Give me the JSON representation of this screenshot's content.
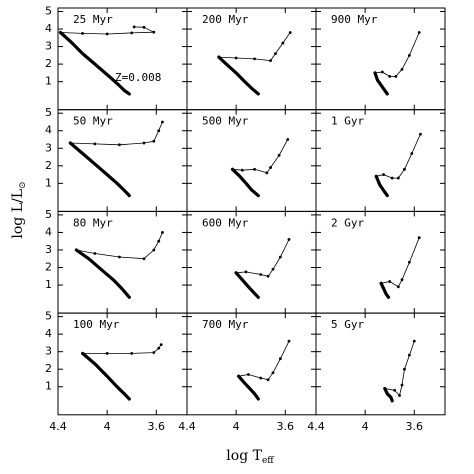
{
  "chart_data": [
    {
      "type": "line",
      "title": "25 Myr",
      "annotation": "Z=0.008",
      "color": "#000000",
      "xlim": [
        4.4,
        3.35
      ],
      "ylim": [
        -0.6,
        5.2
      ],
      "xticks": [
        4.4,
        4,
        3.6
      ],
      "yticks": [
        1,
        2,
        3,
        4,
        5
      ],
      "series": [
        {
          "x": [
            4.38,
            4.3,
            4.2,
            4.1,
            4.0,
            3.92,
            3.86,
            3.82
          ],
          "values": [
            3.8,
            3.3,
            2.6,
            2.0,
            1.4,
            0.9,
            0.5,
            0.3
          ]
        },
        {
          "x": [
            4.38,
            4.2,
            4.0,
            3.8,
            3.62,
            3.7,
            3.78
          ],
          "values": [
            3.8,
            3.75,
            3.72,
            3.78,
            3.82,
            4.1,
            4.12
          ]
        }
      ]
    },
    {
      "type": "line",
      "title": "50 Myr",
      "color": "#000000",
      "xlim": [
        4.4,
        3.35
      ],
      "ylim": [
        -0.6,
        5.2
      ],
      "xticks": [
        4.4,
        4,
        3.6
      ],
      "yticks": [
        1,
        2,
        3,
        4,
        5
      ],
      "series": [
        {
          "x": [
            4.3,
            4.2,
            4.1,
            4.0,
            3.92,
            3.86,
            3.82
          ],
          "values": [
            3.3,
            2.7,
            2.1,
            1.5,
            1.0,
            0.6,
            0.3
          ]
        },
        {
          "x": [
            4.3,
            4.1,
            3.9,
            3.7,
            3.62,
            3.58,
            3.55
          ],
          "values": [
            3.3,
            3.25,
            3.2,
            3.3,
            3.4,
            4.0,
            4.5
          ]
        }
      ]
    },
    {
      "type": "line",
      "title": "80 Myr",
      "color": "#000000",
      "xlim": [
        4.4,
        3.35
      ],
      "ylim": [
        -0.6,
        5.2
      ],
      "xticks": [
        4.4,
        4,
        3.6
      ],
      "yticks": [
        1,
        2,
        3,
        4,
        5
      ],
      "series": [
        {
          "x": [
            4.25,
            4.15,
            4.05,
            3.95,
            3.88,
            3.82
          ],
          "values": [
            3.0,
            2.5,
            1.9,
            1.3,
            0.8,
            0.3
          ]
        },
        {
          "x": [
            4.25,
            4.1,
            3.9,
            3.7,
            3.62,
            3.58,
            3.55
          ],
          "values": [
            3.0,
            2.8,
            2.6,
            2.5,
            3.0,
            3.5,
            4.0
          ]
        }
      ]
    },
    {
      "type": "line",
      "title": "100 Myr",
      "color": "#000000",
      "xlim": [
        4.4,
        3.35
      ],
      "ylim": [
        -0.6,
        5.2
      ],
      "xticks": [
        4.4,
        4,
        3.6
      ],
      "yticks": [
        1,
        2,
        3,
        4,
        5
      ],
      "series": [
        {
          "x": [
            4.2,
            4.1,
            4.0,
            3.92,
            3.86,
            3.82
          ],
          "values": [
            2.9,
            2.3,
            1.6,
            1.0,
            0.6,
            0.3
          ]
        },
        {
          "x": [
            4.2,
            4.0,
            3.8,
            3.62,
            3.58,
            3.56
          ],
          "values": [
            2.9,
            2.9,
            2.9,
            2.95,
            3.2,
            3.4
          ]
        }
      ]
    },
    {
      "type": "line",
      "title": "200 Myr",
      "color": "#000000",
      "xlim": [
        4.4,
        3.35
      ],
      "ylim": [
        -0.6,
        5.2
      ],
      "xticks": [
        4.4,
        4,
        3.6
      ],
      "yticks": [
        1,
        2,
        3,
        4,
        5
      ],
      "series": [
        {
          "x": [
            4.14,
            4.08,
            4.0,
            3.93,
            3.87,
            3.82
          ],
          "values": [
            2.4,
            2.0,
            1.5,
            1.0,
            0.6,
            0.3
          ]
        },
        {
          "x": [
            4.14,
            4.0,
            3.85,
            3.72,
            3.68,
            3.62,
            3.56
          ],
          "values": [
            2.4,
            2.35,
            2.3,
            2.2,
            2.6,
            3.2,
            3.8
          ]
        }
      ]
    },
    {
      "type": "line",
      "title": "500 Myr",
      "color": "#000000",
      "xlim": [
        4.4,
        3.35
      ],
      "ylim": [
        -0.6,
        5.2
      ],
      "xticks": [
        4.4,
        4,
        3.6
      ],
      "yticks": [
        1,
        2,
        3,
        4,
        5
      ],
      "series": [
        {
          "x": [
            4.03,
            3.97,
            3.92,
            3.87,
            3.82
          ],
          "values": [
            1.8,
            1.4,
            1.0,
            0.6,
            0.3
          ]
        },
        {
          "x": [
            4.03,
            3.95,
            3.85,
            3.75,
            3.72,
            3.65,
            3.58
          ],
          "values": [
            1.8,
            1.75,
            1.8,
            1.6,
            1.9,
            2.6,
            3.5
          ]
        }
      ]
    },
    {
      "type": "line",
      "title": "600 Myr",
      "color": "#000000",
      "xlim": [
        4.4,
        3.35
      ],
      "ylim": [
        -0.6,
        5.2
      ],
      "xticks": [
        4.4,
        4,
        3.6
      ],
      "yticks": [
        1,
        2,
        3,
        4,
        5
      ],
      "series": [
        {
          "x": [
            4.0,
            3.95,
            3.9,
            3.86,
            3.82
          ],
          "values": [
            1.7,
            1.3,
            0.9,
            0.6,
            0.3
          ]
        },
        {
          "x": [
            4.0,
            3.92,
            3.8,
            3.74,
            3.7,
            3.64,
            3.57
          ],
          "values": [
            1.7,
            1.75,
            1.6,
            1.5,
            1.9,
            2.6,
            3.6
          ]
        }
      ]
    },
    {
      "type": "line",
      "title": "700 Myr",
      "color": "#000000",
      "xlim": [
        4.4,
        3.35
      ],
      "ylim": [
        -0.6,
        5.2
      ],
      "xticks": [
        4.4,
        4,
        3.6
      ],
      "yticks": [
        1,
        2,
        3,
        4,
        5
      ],
      "series": [
        {
          "x": [
            3.98,
            3.93,
            3.89,
            3.85,
            3.82
          ],
          "values": [
            1.6,
            1.2,
            0.9,
            0.6,
            0.3
          ]
        },
        {
          "x": [
            3.98,
            3.9,
            3.8,
            3.74,
            3.7,
            3.64,
            3.57
          ],
          "values": [
            1.6,
            1.7,
            1.5,
            1.4,
            1.8,
            2.6,
            3.6
          ]
        }
      ]
    },
    {
      "type": "line",
      "title": "900 Myr",
      "color": "#000000",
      "xlim": [
        4.4,
        3.35
      ],
      "ylim": [
        -0.6,
        5.2
      ],
      "xticks": [
        4.4,
        4,
        3.6
      ],
      "yticks": [
        1,
        2,
        3,
        4,
        5
      ],
      "series": [
        {
          "x": [
            3.92,
            3.9,
            3.87,
            3.84,
            3.82
          ],
          "values": [
            1.5,
            1.1,
            0.8,
            0.5,
            0.3
          ]
        },
        {
          "x": [
            3.92,
            3.86,
            3.8,
            3.75,
            3.7,
            3.64,
            3.56
          ],
          "values": [
            1.5,
            1.55,
            1.3,
            1.3,
            1.7,
            2.5,
            3.8
          ]
        }
      ]
    },
    {
      "type": "line",
      "title": "1 Gyr",
      "color": "#000000",
      "xlim": [
        4.4,
        3.35
      ],
      "ylim": [
        -0.6,
        5.2
      ],
      "xticks": [
        4.4,
        4,
        3.6
      ],
      "yticks": [
        1,
        2,
        3,
        4,
        5
      ],
      "series": [
        {
          "x": [
            3.91,
            3.88,
            3.85,
            3.82
          ],
          "values": [
            1.4,
            0.9,
            0.6,
            0.3
          ]
        },
        {
          "x": [
            3.91,
            3.85,
            3.78,
            3.73,
            3.68,
            3.62,
            3.55
          ],
          "values": [
            1.4,
            1.5,
            1.3,
            1.3,
            1.8,
            2.7,
            3.8
          ]
        }
      ]
    },
    {
      "type": "line",
      "title": "2 Gyr",
      "color": "#000000",
      "xlim": [
        4.4,
        3.35
      ],
      "ylim": [
        -0.6,
        5.2
      ],
      "xticks": [
        4.4,
        4,
        3.6
      ],
      "yticks": [
        1,
        2,
        3,
        4,
        5
      ],
      "series": [
        {
          "x": [
            3.87,
            3.85,
            3.83,
            3.81
          ],
          "values": [
            1.1,
            0.8,
            0.5,
            0.3
          ]
        },
        {
          "x": [
            3.87,
            3.8,
            3.73,
            3.7,
            3.64,
            3.56
          ],
          "values": [
            1.1,
            1.2,
            0.9,
            1.3,
            2.3,
            3.7
          ]
        }
      ]
    },
    {
      "type": "line",
      "title": "5 Gyr",
      "color": "#000000",
      "xlim": [
        4.4,
        3.35
      ],
      "ylim": [
        -0.6,
        5.2
      ],
      "xticks": [
        4.4,
        4,
        3.6
      ],
      "yticks": [
        1,
        2,
        3,
        4,
        5
      ],
      "series": [
        {
          "x": [
            3.84,
            3.82,
            3.79,
            3.78
          ],
          "values": [
            0.9,
            0.6,
            0.4,
            0.2
          ]
        },
        {
          "x": [
            3.84,
            3.76,
            3.72,
            3.7,
            3.68,
            3.64,
            3.6
          ],
          "values": [
            0.9,
            0.8,
            0.5,
            1.1,
            2.0,
            2.8,
            3.6
          ]
        }
      ]
    }
  ],
  "xlabel": {
    "main": "log T",
    "sub": "eff"
  },
  "ylabel": {
    "main": "log L/L",
    "sub": "⊙"
  }
}
